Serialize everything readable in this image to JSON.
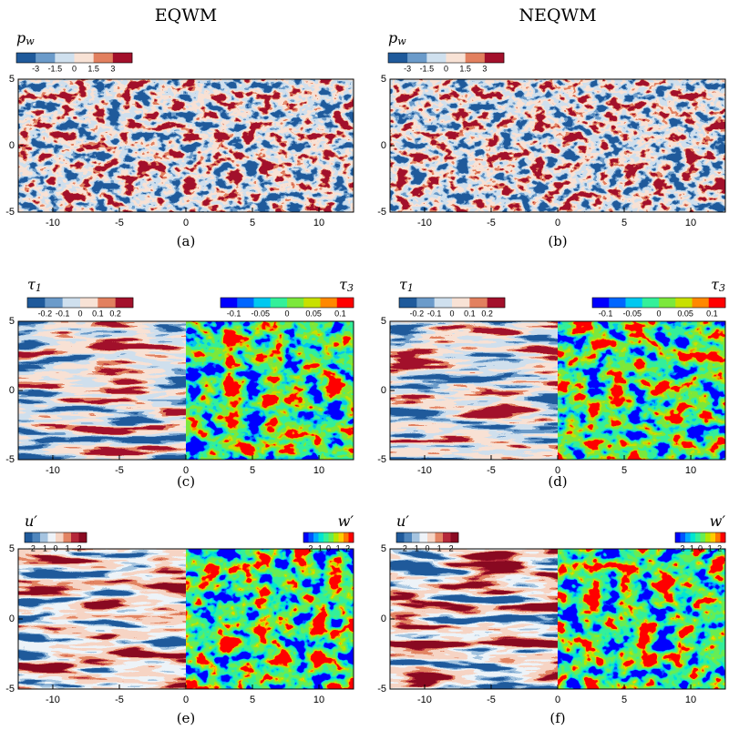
{
  "columns": [
    {
      "title": "EQWM"
    },
    {
      "title": "NEQWM"
    }
  ],
  "xticks": [
    -10,
    -5,
    0,
    5,
    10
  ],
  "yticks": [
    -5,
    0,
    5
  ],
  "xlim": [
    -12.6,
    12.6
  ],
  "ylim": [
    -5,
    5
  ],
  "panels": [
    {
      "caption": "(a)",
      "colorbars": [
        {
          "symbol": "p",
          "subscript": "w",
          "clim": [
            -4.5,
            4.5
          ],
          "ticks": [
            -3,
            -1.5,
            0,
            1.5,
            3
          ],
          "colors": [
            "#1f5a9b",
            "#6b9bca",
            "#cfe0ee",
            "#f8e2d5",
            "#e2805f",
            "#a3102b"
          ]
        }
      ]
    },
    {
      "caption": "(b)",
      "colorbars": [
        {
          "symbol": "p",
          "subscript": "w",
          "clim": [
            -4.5,
            4.5
          ],
          "ticks": [
            -3,
            -1.5,
            0,
            1.5,
            3
          ],
          "colors": [
            "#1f5a9b",
            "#6b9bca",
            "#cfe0ee",
            "#f8e2d5",
            "#e2805f",
            "#a3102b"
          ]
        }
      ]
    },
    {
      "caption": "(c)",
      "colorbars": [
        {
          "symbol": "τ",
          "subscript": "1",
          "clim": [
            -0.3,
            0.3
          ],
          "ticks": [
            -0.2,
            -0.1,
            0,
            0.1,
            0.2
          ],
          "colors": [
            "#1f5a9b",
            "#6b9bca",
            "#cfe0ee",
            "#f8e2d5",
            "#e2805f",
            "#a3102b"
          ]
        },
        {
          "symbol": "τ",
          "subscript": "3",
          "clim": [
            -0.125,
            0.125
          ],
          "ticks": [
            -0.1,
            -0.05,
            0,
            0.05,
            0.1
          ],
          "colors": [
            "#0000ff",
            "#0066ff",
            "#00c8f0",
            "#33f09a",
            "#7ce83c",
            "#c8e000",
            "#ff8800",
            "#ff0000"
          ]
        }
      ]
    },
    {
      "caption": "(d)",
      "colorbars": [
        {
          "symbol": "τ",
          "subscript": "1",
          "clim": [
            -0.3,
            0.3
          ],
          "ticks": [
            -0.2,
            -0.1,
            0,
            0.1,
            0.2
          ],
          "colors": [
            "#1f5a9b",
            "#6b9bca",
            "#cfe0ee",
            "#f8e2d5",
            "#e2805f",
            "#a3102b"
          ]
        },
        {
          "symbol": "τ",
          "subscript": "3",
          "clim": [
            -0.125,
            0.125
          ],
          "ticks": [
            -0.1,
            -0.05,
            0,
            0.05,
            0.1
          ],
          "colors": [
            "#0000ff",
            "#0066ff",
            "#00c8f0",
            "#33f09a",
            "#7ce83c",
            "#c8e000",
            "#ff8800",
            "#ff0000"
          ]
        }
      ]
    },
    {
      "caption": "(e)",
      "colorbars": [
        {
          "symbol": "u′",
          "clim": [
            -2.6,
            2.6
          ],
          "ticks": [
            -2,
            -1,
            0,
            1,
            2
          ],
          "colors": [
            "#1f5a9b",
            "#4f86bd",
            "#a5c4e0",
            "#eef3f8",
            "#f6d5c4",
            "#e38463",
            "#b5283a",
            "#8a0a22"
          ]
        },
        {
          "symbol": "w′",
          "clim": [
            -2.6,
            2.6
          ],
          "ticks": [
            -2,
            -1,
            0,
            1,
            2
          ],
          "colors": [
            "#0000ff",
            "#0055ff",
            "#00aaff",
            "#00e6d2",
            "#33f09a",
            "#66ee55",
            "#b4e600",
            "#ffcc00",
            "#ff7700",
            "#ff0000"
          ]
        }
      ]
    },
    {
      "caption": "(f)",
      "colorbars": [
        {
          "symbol": "u′",
          "clim": [
            -2.6,
            2.6
          ],
          "ticks": [
            -2,
            -1,
            0,
            1,
            2
          ],
          "colors": [
            "#1f5a9b",
            "#4f86bd",
            "#a5c4e0",
            "#eef3f8",
            "#f6d5c4",
            "#e38463",
            "#b5283a",
            "#8a0a22"
          ]
        },
        {
          "symbol": "w′",
          "clim": [
            -2.6,
            2.6
          ],
          "ticks": [
            -2,
            -1,
            0,
            1,
            2
          ],
          "colors": [
            "#0000ff",
            "#0055ff",
            "#00aaff",
            "#00e6d2",
            "#33f09a",
            "#66ee55",
            "#b4e600",
            "#ffcc00",
            "#ff7700",
            "#ff0000"
          ]
        }
      ]
    }
  ]
}
